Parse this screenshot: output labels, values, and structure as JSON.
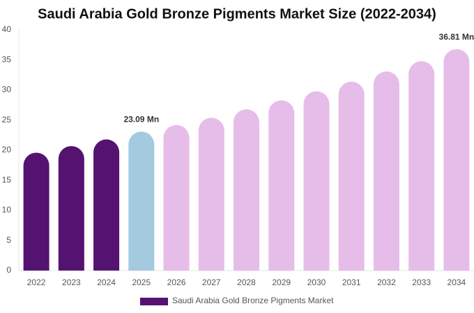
{
  "chart_data": {
    "type": "bar",
    "title": "Saudi Arabia Gold Bronze Pigments Market Size (2022-2034)",
    "categories": [
      "2022",
      "2023",
      "2024",
      "2025",
      "2026",
      "2027",
      "2028",
      "2029",
      "2030",
      "2031",
      "2032",
      "2033",
      "2034"
    ],
    "series": [
      {
        "name": "Saudi Arabia Gold Bronze Pigments Market",
        "color": "#541370",
        "values": [
          19.6,
          20.7,
          21.8,
          23.09,
          24.2,
          25.4,
          26.8,
          28.3,
          29.8,
          31.4,
          33.1,
          34.8,
          36.81
        ],
        "value_labels": [
          null,
          null,
          null,
          "23.09 Mn",
          null,
          null,
          null,
          null,
          null,
          null,
          null,
          null,
          "36.81 Mn"
        ],
        "bar_colors": [
          "#541370",
          "#541370",
          "#541370",
          "#a3cadf",
          "#e6bde9",
          "#e6bde9",
          "#e6bde9",
          "#e6bde9",
          "#e6bde9",
          "#e6bde9",
          "#e6bde9",
          "#e6bde9",
          "#e6bde9"
        ]
      }
    ],
    "ylim": [
      0,
      40
    ],
    "yticks": [
      0,
      5,
      10,
      15,
      20,
      25,
      30,
      35,
      40
    ],
    "grid": false
  }
}
